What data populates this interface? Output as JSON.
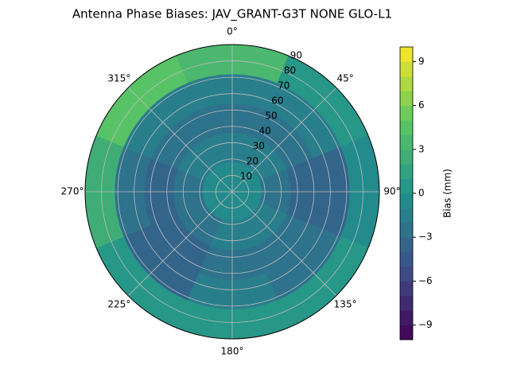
{
  "chart_data": {
    "type": "polar_contour",
    "title": "Antenna Phase Biases: JAV_GRANT-G3T   NONE GLO-L1",
    "theta": [
      0,
      45,
      90,
      135,
      180,
      225,
      270,
      315
    ],
    "r_edges": [
      0,
      18,
      36,
      54,
      72,
      90
    ],
    "z": [
      [
        -1,
        -1,
        -1,
        -1,
        -1,
        -1,
        -1,
        -1
      ],
      [
        -2,
        -2,
        -3,
        -2,
        -2,
        -3,
        -3,
        -2
      ],
      [
        -3,
        -3,
        -4,
        -3,
        -3,
        -4,
        -4,
        -3
      ],
      [
        -2,
        -2,
        -4,
        -3,
        -2,
        -4,
        -3,
        -2
      ],
      [
        3,
        0,
        -1,
        0,
        0,
        0,
        2,
        4
      ]
    ],
    "rlim": [
      0,
      90
    ],
    "rticks": [
      10,
      20,
      30,
      40,
      50,
      60,
      70,
      80,
      90
    ],
    "thetaticks": [
      {
        "value": 0,
        "label": "0°"
      },
      {
        "value": 45,
        "label": "45°"
      },
      {
        "value": 90,
        "label": "90°"
      },
      {
        "value": 135,
        "label": "135°"
      },
      {
        "value": 180,
        "label": "180°"
      },
      {
        "value": 225,
        "label": "225°"
      },
      {
        "value": 270,
        "label": "270°"
      },
      {
        "value": 315,
        "label": "315°"
      }
    ],
    "clim": [
      -10,
      10
    ],
    "cticks": [
      {
        "value": -9,
        "label": "−9"
      },
      {
        "value": -6,
        "label": "−6"
      },
      {
        "value": -3,
        "label": "−3"
      },
      0,
      3,
      6,
      9
    ],
    "colorbar_label": "Bias (mm)",
    "colormap": "viridis",
    "grid": true
  }
}
